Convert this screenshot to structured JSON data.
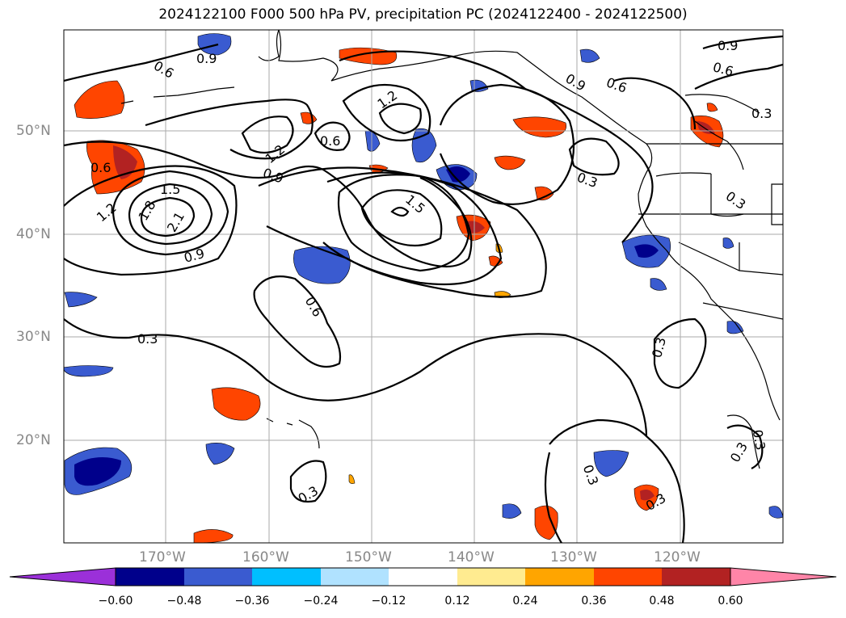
{
  "title": "2024122100 F000 500 hPa PV, precipitation PC (2024122400 - 2024122500)",
  "latitude_labels": [
    "50°N",
    "40°N",
    "30°N",
    "20°N"
  ],
  "longitude_labels": [
    "170°W",
    "160°W",
    "150°W",
    "140°W",
    "130°W",
    "120°W"
  ],
  "colorbar": {
    "colors": [
      "#9b30d9",
      "#00008b",
      "#3a5bd0",
      "#00bfff",
      "#b0e2ff",
      "#ffffff",
      "#ffeb90",
      "#ffa500",
      "#ff4500",
      "#b22222",
      "#ff85a8"
    ],
    "tick_labels": [
      "−0.60",
      "−0.48",
      "−0.36",
      "−0.24",
      "−0.12",
      "0.12",
      "0.24",
      "0.36",
      "0.48",
      "0.60"
    ]
  },
  "contour_labels": [
    "0.6",
    "0.9",
    "1.2",
    "1.5",
    "1.8",
    "2.1",
    "0.3",
    "0.6",
    "0.9",
    "1.2",
    "1.5",
    "0.6",
    "0.3",
    "0.9",
    "0.6",
    "0.3",
    "0.3",
    "0.3",
    "0.6",
    "0.9",
    "1.2",
    "0.3",
    "0.3",
    "0.3",
    "0.3",
    "0.6",
    "0.9",
    "0.3"
  ]
}
